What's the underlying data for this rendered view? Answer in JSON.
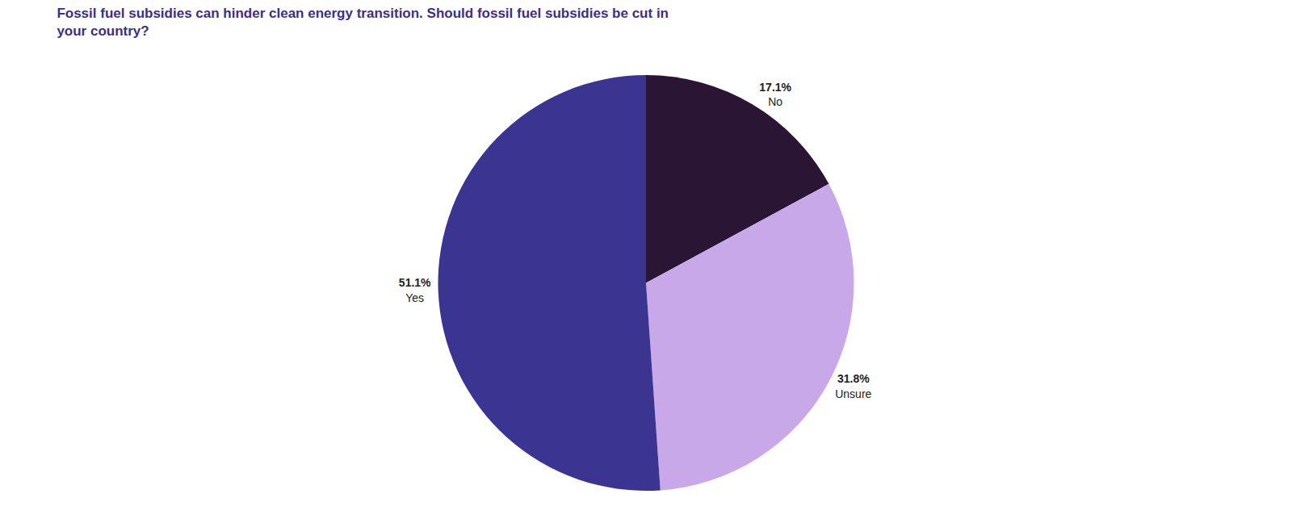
{
  "chart_data": {
    "type": "pie",
    "title": "Fossil fuel subsidies can hinder clean energy transition. Should fossil fuel subsidies be cut in\nyour country?",
    "categories": [
      "No",
      "Unsure",
      "Yes"
    ],
    "values": [
      17.1,
      31.8,
      51.1
    ],
    "value_labels": [
      "17.1%",
      "31.8%",
      "51.1%"
    ],
    "colors": [
      "#2b1535",
      "#c8a8e8",
      "#3b3591"
    ],
    "data_labels": true
  }
}
